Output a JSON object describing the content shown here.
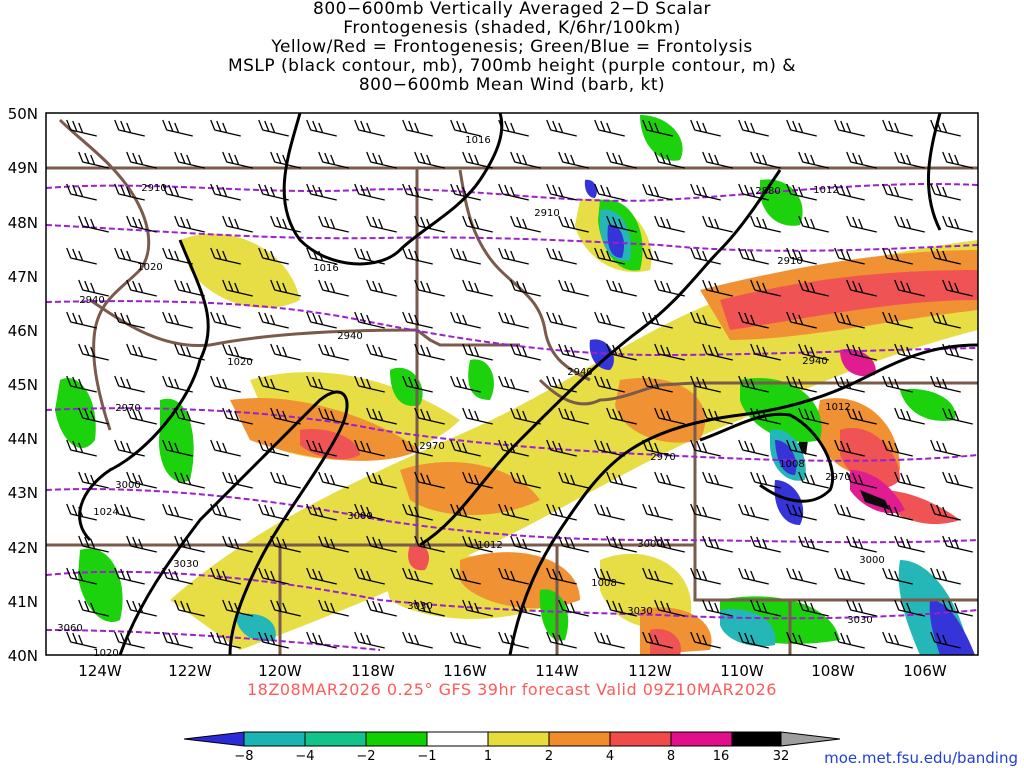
{
  "title": {
    "line1": "800−600mb Vertically Averaged 2−D Scalar",
    "line2": "Frontogenesis (shaded, K/6hr/100km)",
    "line3": "Yellow/Red = Frontogenesis;  Green/Blue = Frontolysis",
    "line4": "MSLP (black contour, mb), 700mb height (purple contour, m) &",
    "line5": "800−600mb Mean Wind (barb, kt)"
  },
  "lat_labels": [
    "50N",
    "49N",
    "48N",
    "47N",
    "46N",
    "45N",
    "44N",
    "43N",
    "42N",
    "41N",
    "40N"
  ],
  "lon_labels": [
    "124W",
    "122W",
    "120W",
    "118W",
    "116W",
    "114W",
    "112W",
    "110W",
    "108W",
    "106W"
  ],
  "credit": "18Z08MAR2026 0.25° GFS 39hr forecast Valid 09Z10MAR2026",
  "url": "moe.met.fsu.edu/banding",
  "colorbar": {
    "ticks": [
      "−8",
      "−4",
      "−2",
      "−1",
      "1",
      "2",
      "4",
      "8",
      "16",
      "32"
    ],
    "colors": [
      "#2a2ad8",
      "#1ab4b4",
      "#12c48a",
      "#10d000",
      "#ffffff",
      "#e6dc3c",
      "#f08c2a",
      "#f04a4a",
      "#e0108c",
      "#000000",
      "#9e9e9e"
    ]
  },
  "pressure_labels": [
    "1016",
    "1016",
    "1020",
    "1020",
    "1024",
    "1012",
    "1012",
    "1008",
    "1012",
    "1008",
    "1020"
  ],
  "height_labels": [
    "2910",
    "2910",
    "2880",
    "2910",
    "2940",
    "2940",
    "2940",
    "2940",
    "2970",
    "2970",
    "2970",
    "2970",
    "3000",
    "3000",
    "3000",
    "3000",
    "3030",
    "3030",
    "3030",
    "3030",
    "3060"
  ],
  "colors": {
    "state_border": "#7a5a4a",
    "pressure": "#000000",
    "height": "#9a20d0",
    "credit": "#ff5a5a",
    "url": "#1f3fd6"
  }
}
